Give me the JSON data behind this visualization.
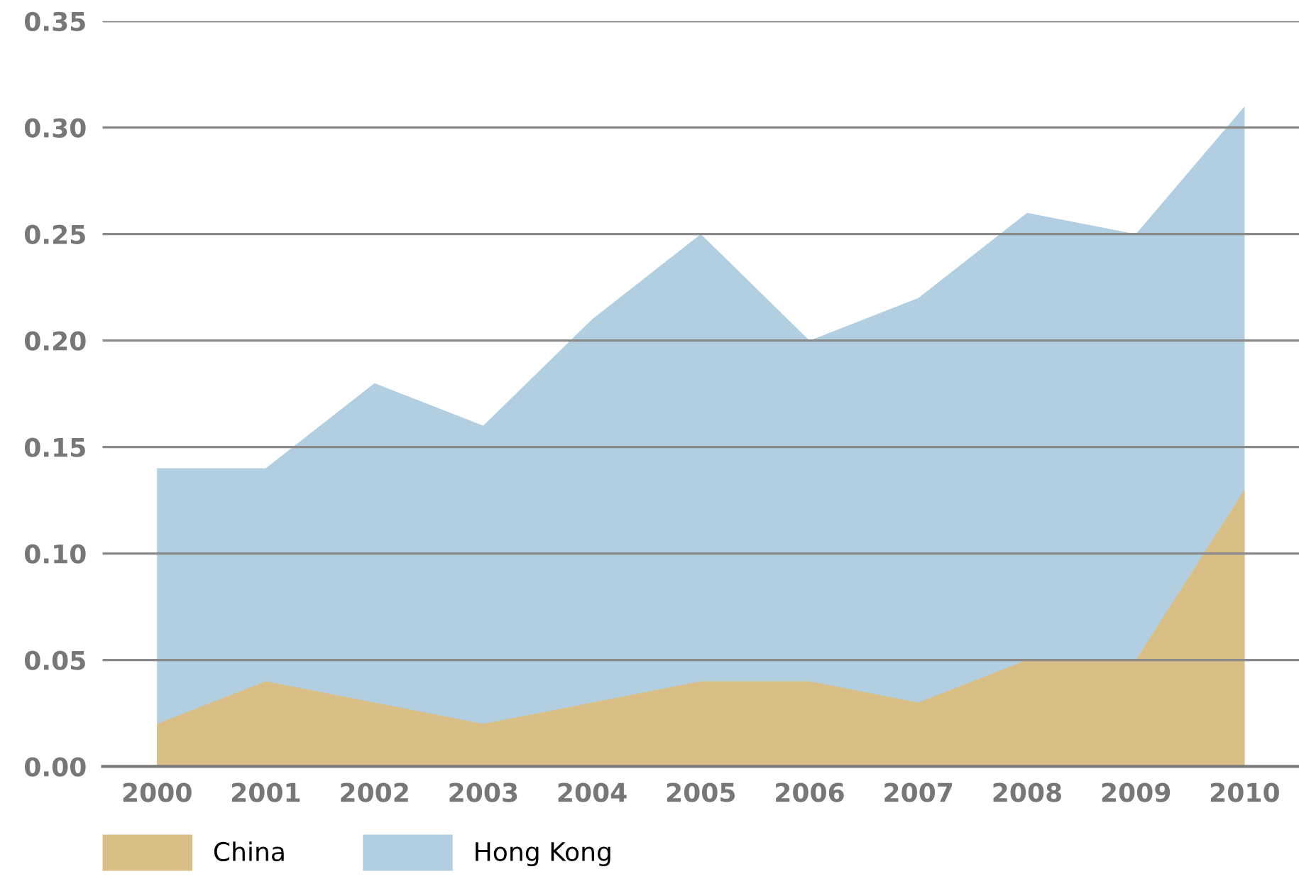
{
  "chart_data": {
    "type": "area",
    "categories": [
      "2000",
      "2001",
      "2002",
      "2003",
      "2004",
      "2005",
      "2006",
      "2007",
      "2008",
      "2009",
      "2010"
    ],
    "series": [
      {
        "name": "China",
        "color": "#d9bf86",
        "values": [
          0.02,
          0.04,
          0.03,
          0.02,
          0.03,
          0.04,
          0.04,
          0.03,
          0.05,
          0.05,
          0.13
        ]
      },
      {
        "name": "Hong Kong",
        "color": "#b1cfe0",
        "values": [
          0.14,
          0.14,
          0.18,
          0.16,
          0.21,
          0.25,
          0.2,
          0.22,
          0.26,
          0.25,
          0.31
        ]
      }
    ],
    "ylim": [
      0,
      0.35
    ],
    "yticks": [
      {
        "value": 0,
        "label": "0.00"
      },
      {
        "value": 0.05,
        "label": "0.05"
      },
      {
        "value": 0.1,
        "label": "0.10"
      },
      {
        "value": 0.15,
        "label": "0.15"
      },
      {
        "value": 0.2,
        "label": "0.20"
      },
      {
        "value": 0.25,
        "label": "0.25"
      },
      {
        "value": 0.3,
        "label": "0.30"
      },
      {
        "value": 0.35,
        "label": "0.35"
      }
    ],
    "grid": "y",
    "legend": "bottom left"
  }
}
